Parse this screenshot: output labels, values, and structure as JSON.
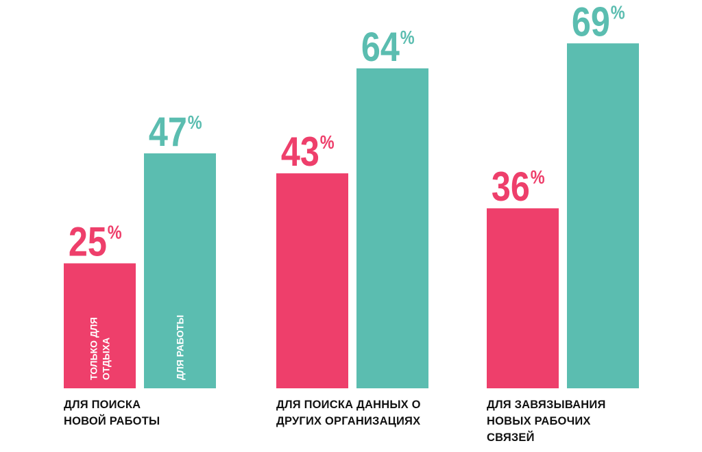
{
  "chart_data": {
    "type": "bar",
    "categories": [
      [
        "ДЛЯ ПОИСКА",
        "НОВОЙ РАБОТЫ"
      ],
      [
        "ДЛЯ ПОИСКА ДАННЫХ О",
        "ДРУГИХ ОРГАНИЗАЦИЯХ"
      ],
      [
        "ДЛЯ ЗАВЯЗЫВАНИЯ",
        "НОВЫХ РАБОЧИХ",
        "СВЯЗЕЙ"
      ]
    ],
    "series": [
      {
        "name": "ТОЛЬКО ДЛЯ ОТДЫХА",
        "name_lines": [
          "ТОЛЬКО ДЛЯ",
          "ОТДЫХА"
        ],
        "color": "#ee3f6b",
        "values": [
          25,
          43,
          36
        ]
      },
      {
        "name": "ДЛЯ РАБОТЫ",
        "name_lines": [
          "ДЛЯ РАБОТЫ"
        ],
        "color": "#5bbdb0",
        "values": [
          47,
          64,
          69
        ]
      }
    ],
    "unit": "%",
    "ylim": [
      0,
      70
    ],
    "grid": false,
    "legend": "inside-first-group-bars"
  }
}
